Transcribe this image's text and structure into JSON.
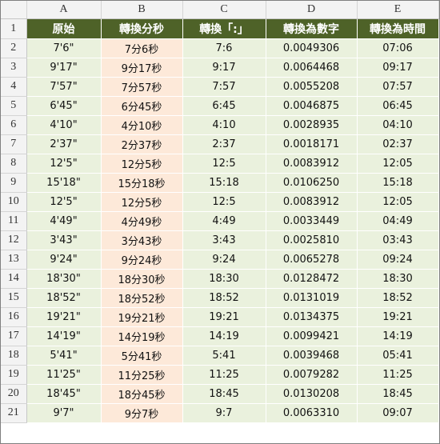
{
  "columns": [
    "A",
    "B",
    "C",
    "D",
    "E"
  ],
  "header_row": {
    "number": "1",
    "cells": [
      "原始",
      "轉換分秒",
      "轉換「:」",
      "轉換為數字",
      "轉換為時間"
    ]
  },
  "rows": [
    {
      "n": "2",
      "a": "7'6\"",
      "b": "7分6秒",
      "c": "7:6",
      "d": "0.0049306",
      "e": "07:06"
    },
    {
      "n": "3",
      "a": "9'17\"",
      "b": "9分17秒",
      "c": "9:17",
      "d": "0.0064468",
      "e": "09:17"
    },
    {
      "n": "4",
      "a": "7'57\"",
      "b": "7分57秒",
      "c": "7:57",
      "d": "0.0055208",
      "e": "07:57"
    },
    {
      "n": "5",
      "a": "6'45\"",
      "b": "6分45秒",
      "c": "6:45",
      "d": "0.0046875",
      "e": "06:45"
    },
    {
      "n": "6",
      "a": "4'10\"",
      "b": "4分10秒",
      "c": "4:10",
      "d": "0.0028935",
      "e": "04:10"
    },
    {
      "n": "7",
      "a": "2'37\"",
      "b": "2分37秒",
      "c": "2:37",
      "d": "0.0018171",
      "e": "02:37"
    },
    {
      "n": "8",
      "a": "12'5\"",
      "b": "12分5秒",
      "c": "12:5",
      "d": "0.0083912",
      "e": "12:05"
    },
    {
      "n": "9",
      "a": "15'18\"",
      "b": "15分18秒",
      "c": "15:18",
      "d": "0.0106250",
      "e": "15:18"
    },
    {
      "n": "10",
      "a": "12'5\"",
      "b": "12分5秒",
      "c": "12:5",
      "d": "0.0083912",
      "e": "12:05"
    },
    {
      "n": "11",
      "a": "4'49\"",
      "b": "4分49秒",
      "c": "4:49",
      "d": "0.0033449",
      "e": "04:49"
    },
    {
      "n": "12",
      "a": "3'43\"",
      "b": "3分43秒",
      "c": "3:43",
      "d": "0.0025810",
      "e": "03:43"
    },
    {
      "n": "13",
      "a": "9'24\"",
      "b": "9分24秒",
      "c": "9:24",
      "d": "0.0065278",
      "e": "09:24"
    },
    {
      "n": "14",
      "a": "18'30\"",
      "b": "18分30秒",
      "c": "18:30",
      "d": "0.0128472",
      "e": "18:30"
    },
    {
      "n": "15",
      "a": "18'52\"",
      "b": "18分52秒",
      "c": "18:52",
      "d": "0.0131019",
      "e": "18:52"
    },
    {
      "n": "16",
      "a": "19'21\"",
      "b": "19分21秒",
      "c": "19:21",
      "d": "0.0134375",
      "e": "19:21"
    },
    {
      "n": "17",
      "a": "14'19\"",
      "b": "14分19秒",
      "c": "14:19",
      "d": "0.0099421",
      "e": "14:19"
    },
    {
      "n": "18",
      "a": "5'41\"",
      "b": "5分41秒",
      "c": "5:41",
      "d": "0.0039468",
      "e": "05:41"
    },
    {
      "n": "19",
      "a": "11'25\"",
      "b": "11分25秒",
      "c": "11:25",
      "d": "0.0079282",
      "e": "11:25"
    },
    {
      "n": "20",
      "a": "18'45\"",
      "b": "18分45秒",
      "c": "18:45",
      "d": "0.0130208",
      "e": "18:45"
    },
    {
      "n": "21",
      "a": "9'7\"",
      "b": "9分7秒",
      "c": "9:7",
      "d": "0.0063310",
      "e": "09:07"
    }
  ],
  "colors": {
    "header_fill": "#4e6228",
    "header_text": "#ffffff",
    "green_fill": "#eaf1dd",
    "peach_fill": "#fde9d9",
    "grid_header_fill": "#f3f3f3"
  }
}
